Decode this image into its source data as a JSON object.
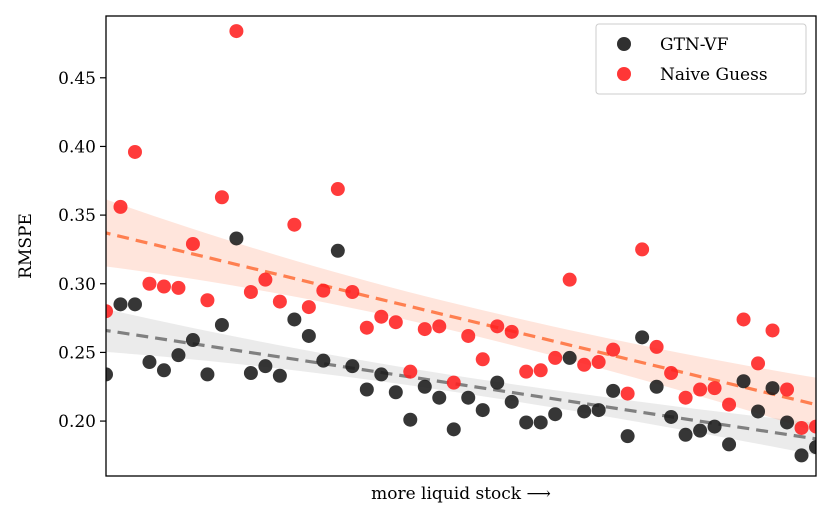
{
  "chart_data": {
    "type": "scatter",
    "title": "",
    "xlabel": "more liquid stock ⟶",
    "ylabel": "RMSPE",
    "xlim": [
      0,
      49
    ],
    "ylim": [
      0.16,
      0.495
    ],
    "yticks": [
      0.2,
      0.25,
      0.3,
      0.35,
      0.4,
      0.45
    ],
    "ytick_labels": [
      "0.20",
      "0.25",
      "0.30",
      "0.35",
      "0.40",
      "0.45"
    ],
    "grid": false,
    "legend": "top-right",
    "series": [
      {
        "name": "GTN-VF",
        "color": "#1a1a1a",
        "points": [
          [
            0,
            0.234
          ],
          [
            1,
            0.285
          ],
          [
            2,
            0.285
          ],
          [
            3,
            0.243
          ],
          [
            4,
            0.237
          ],
          [
            5,
            0.248
          ],
          [
            6,
            0.259
          ],
          [
            7,
            0.234
          ],
          [
            8,
            0.27
          ],
          [
            9,
            0.333
          ],
          [
            10,
            0.235
          ],
          [
            11,
            0.24
          ],
          [
            12,
            0.233
          ],
          [
            13,
            0.274
          ],
          [
            14,
            0.262
          ],
          [
            15,
            0.244
          ],
          [
            16,
            0.324
          ],
          [
            17,
            0.24
          ],
          [
            18,
            0.223
          ],
          [
            19,
            0.234
          ],
          [
            20,
            0.221
          ],
          [
            21,
            0.201
          ],
          [
            22,
            0.225
          ],
          [
            23,
            0.217
          ],
          [
            24,
            0.194
          ],
          [
            25,
            0.217
          ],
          [
            26,
            0.208
          ],
          [
            27,
            0.228
          ],
          [
            28,
            0.214
          ],
          [
            29,
            0.199
          ],
          [
            30,
            0.199
          ],
          [
            31,
            0.205
          ],
          [
            32,
            0.246
          ],
          [
            33,
            0.207
          ],
          [
            34,
            0.208
          ],
          [
            35,
            0.222
          ],
          [
            36,
            0.189
          ],
          [
            37,
            0.261
          ],
          [
            38,
            0.225
          ],
          [
            39,
            0.203
          ],
          [
            40,
            0.19
          ],
          [
            41,
            0.193
          ],
          [
            42,
            0.196
          ],
          [
            43,
            0.183
          ],
          [
            44,
            0.229
          ],
          [
            45,
            0.207
          ],
          [
            46,
            0.224
          ],
          [
            47,
            0.199
          ],
          [
            48,
            0.175
          ],
          [
            49,
            0.181
          ]
        ],
        "trend": {
          "start": 0.266,
          "end": 0.187,
          "band_start": 0.016,
          "band_mid": 0.006,
          "band_end": 0.012
        }
      },
      {
        "name": "Naive Guess",
        "color": "#ff2020",
        "points": [
          [
            0,
            0.28
          ],
          [
            1,
            0.356
          ],
          [
            2,
            0.396
          ],
          [
            3,
            0.3
          ],
          [
            4,
            0.298
          ],
          [
            5,
            0.297
          ],
          [
            6,
            0.329
          ],
          [
            7,
            0.288
          ],
          [
            8,
            0.363
          ],
          [
            9,
            0.484
          ],
          [
            10,
            0.294
          ],
          [
            11,
            0.303
          ],
          [
            12,
            0.287
          ],
          [
            13,
            0.343
          ],
          [
            14,
            0.283
          ],
          [
            15,
            0.295
          ],
          [
            16,
            0.369
          ],
          [
            17,
            0.294
          ],
          [
            18,
            0.268
          ],
          [
            19,
            0.276
          ],
          [
            20,
            0.272
          ],
          [
            21,
            0.236
          ],
          [
            22,
            0.267
          ],
          [
            23,
            0.269
          ],
          [
            24,
            0.228
          ],
          [
            25,
            0.262
          ],
          [
            26,
            0.245
          ],
          [
            27,
            0.269
          ],
          [
            28,
            0.265
          ],
          [
            29,
            0.236
          ],
          [
            30,
            0.237
          ],
          [
            31,
            0.246
          ],
          [
            32,
            0.303
          ],
          [
            33,
            0.241
          ],
          [
            34,
            0.243
          ],
          [
            35,
            0.252
          ],
          [
            36,
            0.22
          ],
          [
            37,
            0.325
          ],
          [
            38,
            0.254
          ],
          [
            39,
            0.235
          ],
          [
            40,
            0.217
          ],
          [
            41,
            0.223
          ],
          [
            42,
            0.224
          ],
          [
            43,
            0.212
          ],
          [
            44,
            0.274
          ],
          [
            45,
            0.242
          ],
          [
            46,
            0.266
          ],
          [
            47,
            0.223
          ],
          [
            48,
            0.195
          ],
          [
            49,
            0.196
          ]
        ],
        "trend": {
          "start": 0.337,
          "end": 0.212,
          "band_start": 0.025,
          "band_mid": 0.01,
          "band_end": 0.02
        }
      }
    ]
  }
}
